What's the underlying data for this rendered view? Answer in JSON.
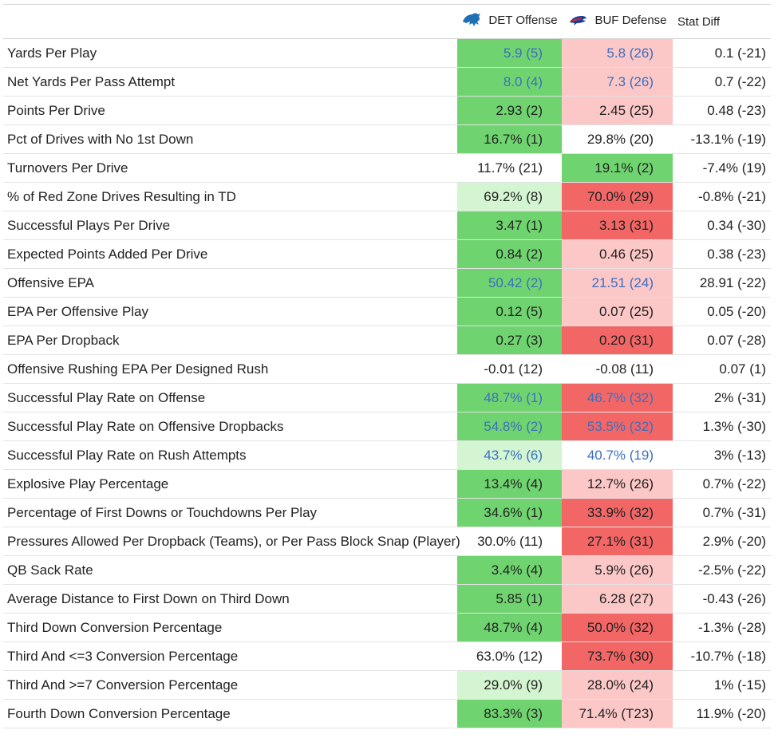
{
  "header": {
    "det_label": "DET Offense",
    "buf_label": "BUF Defense",
    "diff_label": "Stat Diff",
    "det_logo_icon": "lions-logo-icon",
    "buf_logo_icon": "bills-logo-icon"
  },
  "colors": {
    "green_strong": "#6fd46f",
    "green_light": "#d4f5d1",
    "red_strong": "#f26666",
    "red_light": "#fbc7c7",
    "blue_text": "#3d6fbf"
  },
  "rows": [
    {
      "label": "Yards Per Play",
      "det": "5.9 (5)",
      "buf": "5.8 (26)",
      "diff": "0.1 (-21)",
      "det_bg": "g-strong",
      "buf_bg": "r-light",
      "blue": true
    },
    {
      "label": "Net Yards Per Pass Attempt",
      "det": "8.0 (4)",
      "buf": "7.3 (26)",
      "diff": "0.7 (-22)",
      "det_bg": "g-strong",
      "buf_bg": "r-light",
      "blue": true
    },
    {
      "label": "Points Per Drive",
      "det": "2.93 (2)",
      "buf": "2.45 (25)",
      "diff": "0.48 (-23)",
      "det_bg": "g-strong",
      "buf_bg": "r-light",
      "blue": false
    },
    {
      "label": "Pct of Drives with No 1st Down",
      "det": "16.7% (1)",
      "buf": "29.8% (20)",
      "diff": "-13.1% (-19)",
      "det_bg": "g-strong",
      "buf_bg": "",
      "blue": false
    },
    {
      "label": "Turnovers Per Drive",
      "det": "11.7% (21)",
      "buf": "19.1% (2)",
      "diff": "-7.4% (19)",
      "det_bg": "",
      "buf_bg": "g-strong",
      "blue": false
    },
    {
      "label": "% of Red Zone Drives Resulting in TD",
      "det": "69.2% (8)",
      "buf": "70.0% (29)",
      "diff": "-0.8% (-21)",
      "det_bg": "g-light",
      "buf_bg": "r-strong",
      "blue": false
    },
    {
      "label": "Successful Plays Per Drive",
      "det": "3.47 (1)",
      "buf": "3.13 (31)",
      "diff": "0.34 (-30)",
      "det_bg": "g-strong",
      "buf_bg": "r-strong",
      "blue": false
    },
    {
      "label": "Expected Points Added Per Drive",
      "det": "0.84 (2)",
      "buf": "0.46 (25)",
      "diff": "0.38 (-23)",
      "det_bg": "g-strong",
      "buf_bg": "r-light",
      "blue": false
    },
    {
      "label": "Offensive EPA",
      "det": "50.42 (2)",
      "buf": "21.51 (24)",
      "diff": "28.91 (-22)",
      "det_bg": "g-strong",
      "buf_bg": "r-light",
      "blue": true
    },
    {
      "label": "EPA Per Offensive Play",
      "det": "0.12 (5)",
      "buf": "0.07 (25)",
      "diff": "0.05 (-20)",
      "det_bg": "g-strong",
      "buf_bg": "r-light",
      "blue": false
    },
    {
      "label": "EPA Per Dropback",
      "det": "0.27 (3)",
      "buf": "0.20 (31)",
      "diff": "0.07 (-28)",
      "det_bg": "g-strong",
      "buf_bg": "r-strong",
      "blue": false
    },
    {
      "label": "Offensive Rushing EPA Per Designed Rush",
      "det": "-0.01 (12)",
      "buf": "-0.08 (11)",
      "diff": "0.07 (1)",
      "det_bg": "",
      "buf_bg": "",
      "blue": false
    },
    {
      "label": "Successful Play Rate on Offense",
      "det": "48.7% (1)",
      "buf": "46.7% (32)",
      "diff": "2% (-31)",
      "det_bg": "g-strong",
      "buf_bg": "r-strong",
      "blue": true
    },
    {
      "label": "Successful Play Rate on Offensive Dropbacks",
      "det": "54.8% (2)",
      "buf": "53.5% (32)",
      "diff": "1.3% (-30)",
      "det_bg": "g-strong",
      "buf_bg": "r-strong",
      "blue": true
    },
    {
      "label": "Successful Play Rate on Rush Attempts",
      "det": "43.7% (6)",
      "buf": "40.7% (19)",
      "diff": "3% (-13)",
      "det_bg": "g-light",
      "buf_bg": "",
      "blue": true
    },
    {
      "label": "Explosive Play Percentage",
      "det": "13.4% (4)",
      "buf": "12.7% (26)",
      "diff": "0.7% (-22)",
      "det_bg": "g-strong",
      "buf_bg": "r-light",
      "blue": false
    },
    {
      "label": "Percentage of First Downs or Touchdowns Per Play",
      "det": "34.6% (1)",
      "buf": "33.9% (32)",
      "diff": "0.7% (-31)",
      "det_bg": "g-strong",
      "buf_bg": "r-strong",
      "blue": false
    },
    {
      "label": "Pressures Allowed Per Dropback (Teams), or Per Pass Block Snap (Player)",
      "det": "30.0% (11)",
      "buf": "27.1% (31)",
      "diff": "2.9% (-20)",
      "det_bg": "",
      "buf_bg": "r-strong",
      "blue": false
    },
    {
      "label": "QB Sack Rate",
      "det": "3.4% (4)",
      "buf": "5.9% (26)",
      "diff": "-2.5% (-22)",
      "det_bg": "g-strong",
      "buf_bg": "r-light",
      "blue": false
    },
    {
      "label": "Average Distance to First Down on Third Down",
      "det": "5.85 (1)",
      "buf": "6.28 (27)",
      "diff": "-0.43 (-26)",
      "det_bg": "g-strong",
      "buf_bg": "r-light",
      "blue": false
    },
    {
      "label": "Third Down Conversion Percentage",
      "det": "48.7% (4)",
      "buf": "50.0% (32)",
      "diff": "-1.3% (-28)",
      "det_bg": "g-strong",
      "buf_bg": "r-strong",
      "blue": false
    },
    {
      "label": "Third And <=3 Conversion Percentage",
      "det": "63.0% (12)",
      "buf": "73.7% (30)",
      "diff": "-10.7% (-18)",
      "det_bg": "",
      "buf_bg": "r-strong",
      "blue": false
    },
    {
      "label": "Third And >=7 Conversion Percentage",
      "det": "29.0% (9)",
      "buf": "28.0% (24)",
      "diff": "1% (-15)",
      "det_bg": "g-light",
      "buf_bg": "r-light",
      "blue": false
    },
    {
      "label": "Fourth Down Conversion Percentage",
      "det": "83.3% (3)",
      "buf": "71.4% (T23)",
      "diff": "11.9% (-20)",
      "det_bg": "g-strong",
      "buf_bg": "r-light",
      "blue": false
    }
  ]
}
